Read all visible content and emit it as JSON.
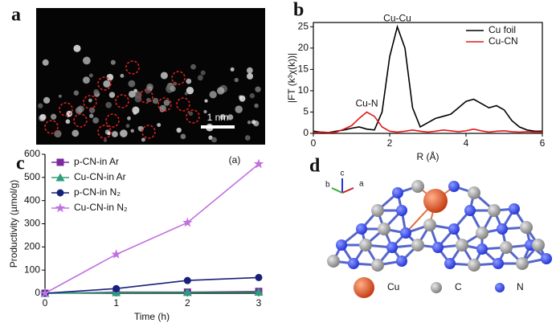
{
  "chart_data": [
    {
      "type": "line",
      "panel_label": "b",
      "xlabel": "R (Å)",
      "ylabel": "|FT (k³χ(k))|",
      "xlim": [
        0,
        6
      ],
      "xticks": [
        0,
        2,
        4,
        6
      ],
      "ylim": [
        0,
        26
      ],
      "yticks": [
        0,
        5,
        10,
        15,
        20,
        25
      ],
      "legend": "upper right",
      "annotations": [
        "Cu-Cu",
        "Cu-N"
      ],
      "x": [
        0,
        0.2,
        0.4,
        0.6,
        0.8,
        1.0,
        1.2,
        1.4,
        1.6,
        1.8,
        2.0,
        2.2,
        2.4,
        2.6,
        2.8,
        3.0,
        3.2,
        3.4,
        3.6,
        3.8,
        4.0,
        4.2,
        4.4,
        4.6,
        4.8,
        5.0,
        5.2,
        5.4,
        5.6,
        5.8,
        6.0
      ],
      "series": [
        {
          "name": "Cu foil",
          "color": "#000000",
          "values": [
            0.5,
            0.3,
            0.2,
            0.5,
            0.8,
            1.2,
            1.5,
            1.0,
            0.8,
            5,
            18,
            25,
            20,
            6,
            1.5,
            2.5,
            3.5,
            4,
            4.5,
            6,
            7.5,
            8,
            7,
            6,
            6.5,
            5.5,
            3,
            1.5,
            0.8,
            0.5,
            0.5
          ]
        },
        {
          "name": "Cu-CN",
          "color": "#e0191b",
          "values": [
            0.2,
            0.3,
            0.2,
            0.3,
            1.0,
            1.8,
            3.5,
            5,
            4,
            1.5,
            0.5,
            0.3,
            0.5,
            0.8,
            0.5,
            0.3,
            0.5,
            0.8,
            0.6,
            0.4,
            0.6,
            1.0,
            0.6,
            0.3,
            0.5,
            0.6,
            0.4,
            0.3,
            0.4,
            0.3,
            0.3
          ]
        }
      ]
    },
    {
      "type": "line",
      "panel_label": "c",
      "xlabel": "Time (h)",
      "ylabel": "Productivity (µmol/g)",
      "xlim": [
        0,
        3
      ],
      "xticks": [
        0,
        1,
        2,
        3
      ],
      "ylim": [
        0,
        600
      ],
      "yticks": [
        0,
        100,
        200,
        300,
        400,
        500,
        600
      ],
      "legend": "upper left",
      "annotations": [
        "(a)"
      ],
      "x": [
        0,
        1,
        2,
        3
      ],
      "series": [
        {
          "name": "p-CN-in Ar",
          "color": "#7b2a9e",
          "marker": "square",
          "values": [
            0,
            5,
            5,
            8
          ]
        },
        {
          "name": "Cu-CN-in Ar",
          "color": "#2e9e7a",
          "marker": "triangle",
          "values": [
            0,
            3,
            4,
            5
          ]
        },
        {
          "name": "p-CN-in N₂",
          "color": "#17207a",
          "marker": "circle",
          "values": [
            0,
            20,
            55,
            68
          ]
        },
        {
          "name": "Cu-CN-in N₂",
          "color": "#c070e0",
          "marker": "star",
          "values": [
            0,
            168,
            305,
            558
          ]
        }
      ]
    }
  ],
  "micrograph": {
    "label": "a",
    "scale_bar": "1 nm"
  },
  "structure": {
    "label": "d",
    "axes": [
      "a",
      "b",
      "c"
    ],
    "legend": [
      "Cu",
      "C",
      "N"
    ]
  }
}
